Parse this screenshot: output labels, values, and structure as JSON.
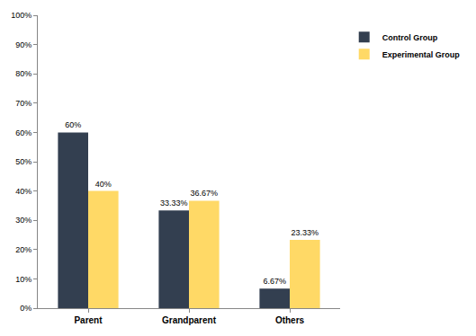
{
  "chart_data": {
    "type": "bar",
    "categories": [
      "Parent",
      "Grandparent",
      "Others"
    ],
    "series": [
      {
        "name": "Control Group",
        "color": "#333f50",
        "values": [
          60,
          33.33,
          6.67
        ],
        "value_labels": [
          "60%",
          "33.33%",
          "6.67%"
        ]
      },
      {
        "name": "Experimental Group",
        "color": "#ffd966",
        "values": [
          40,
          36.67,
          23.33
        ],
        "value_labels": [
          "40%",
          "36.67%",
          "23.33%"
        ]
      }
    ],
    "ylim": [
      0,
      100
    ],
    "yticks": [
      {
        "value": 0,
        "label": "0%"
      },
      {
        "value": 10,
        "label": "10%"
      },
      {
        "value": 20,
        "label": "20%"
      },
      {
        "value": 30,
        "label": "30%"
      },
      {
        "value": 40,
        "label": "40%"
      },
      {
        "value": 50,
        "label": "50%"
      },
      {
        "value": 60,
        "label": "60%"
      },
      {
        "value": 70,
        "label": "70%"
      },
      {
        "value": 80,
        "label": "80%"
      },
      {
        "value": 90,
        "label": "90%"
      },
      {
        "value": 100,
        "label": "100%"
      }
    ],
    "grid": false,
    "legend": "top-right",
    "data_labels": true
  }
}
